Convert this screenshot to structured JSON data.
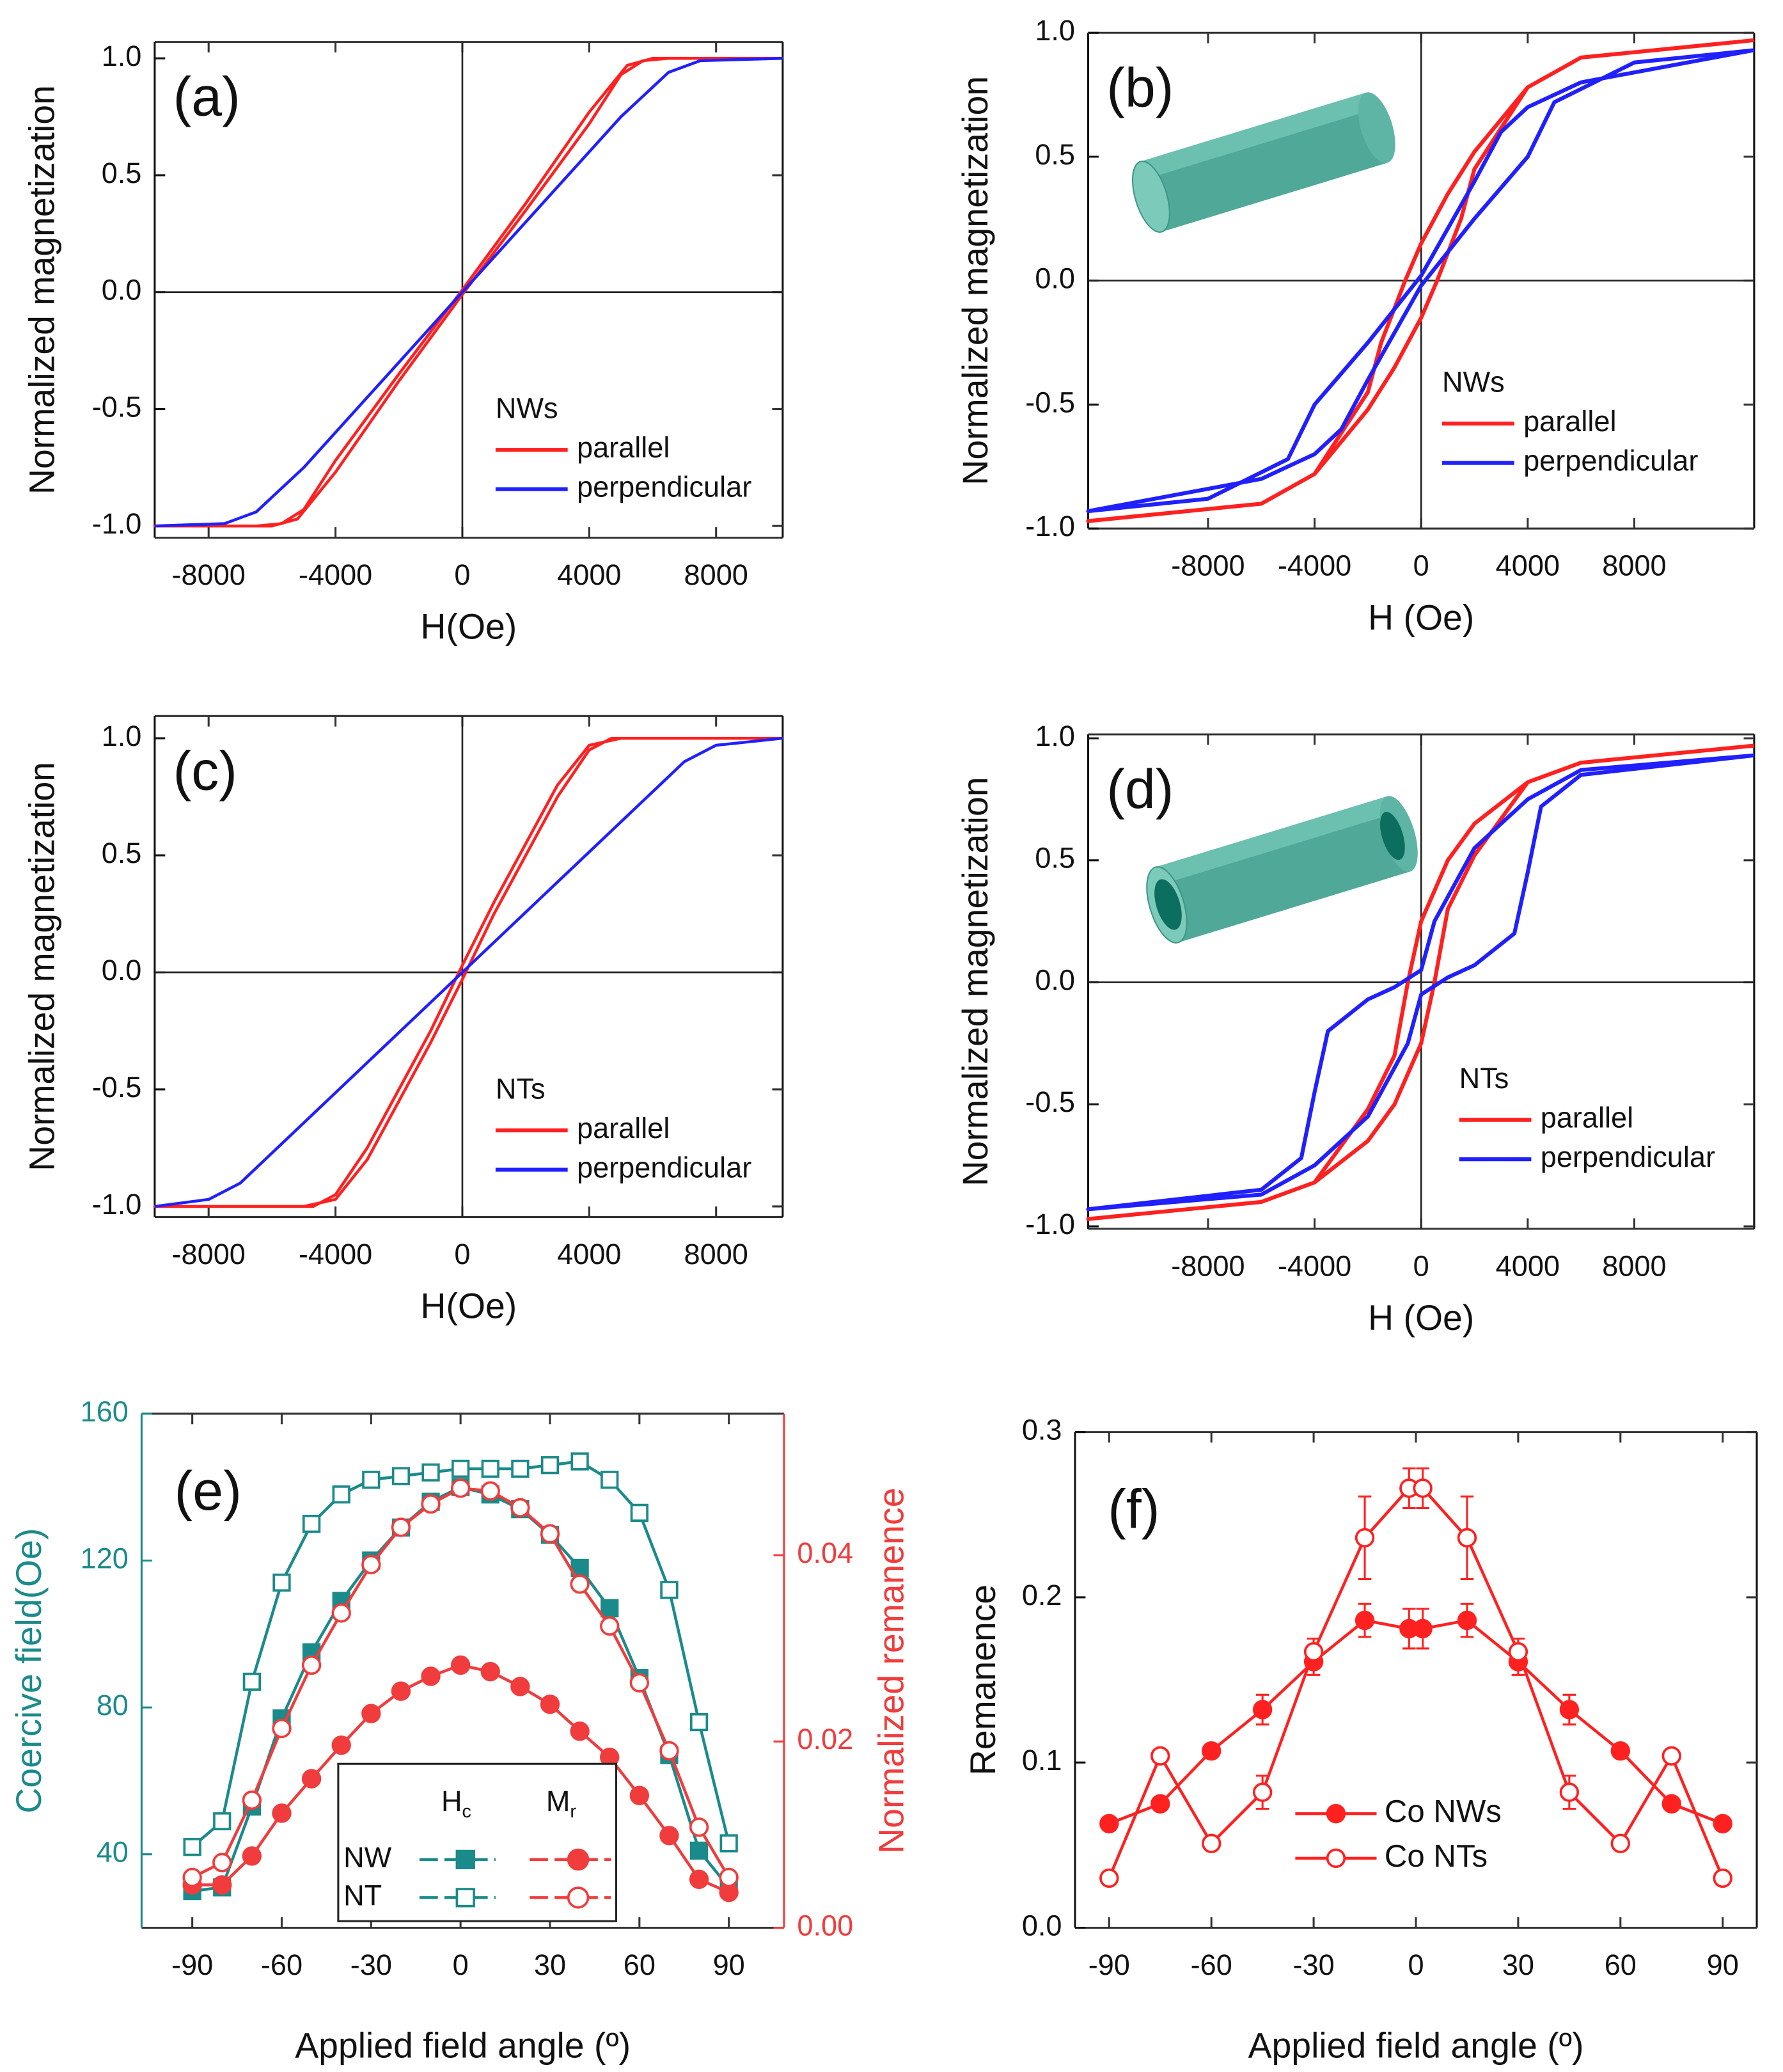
{
  "chart_data": [
    {
      "type": "line",
      "title": "(a)",
      "xlabel": "H(Oe)",
      "ylabel": "Normalized magnetization",
      "legend_title": "NWs",
      "xlim": [
        -9700,
        10100
      ],
      "ylim": [
        -1.05,
        1.07
      ],
      "xticks": [
        -8000,
        -4000,
        0,
        4000,
        8000
      ],
      "yticks": [
        {
          "value": -1,
          "label": "-1.0"
        },
        -0.5,
        {
          "value": 0,
          "label": "0.0"
        },
        0.5,
        {
          "value": 1,
          "label": "1.0"
        }
      ],
      "zero_lines": true,
      "series": [
        {
          "name": "parallel",
          "color": "#ff2020",
          "x": [
            10100,
            6000,
            5200,
            4000,
            2000,
            0,
            -2000,
            -4000,
            -5000,
            -5700,
            -6500,
            -9700,
            -6000,
            -5200,
            -4000,
            -2000,
            0,
            2000,
            4000,
            5000,
            5700,
            6500,
            10100
          ],
          "values": [
            1,
            1,
            0.97,
            0.77,
            0.38,
            0.01,
            -0.35,
            -0.72,
            -0.93,
            -0.99,
            -1,
            -1,
            -1,
            -0.97,
            -0.77,
            -0.38,
            -0.01,
            0.35,
            0.72,
            0.93,
            0.99,
            1,
            1
          ]
        },
        {
          "name": "perpendicular",
          "color": "#2020ff",
          "x": [
            -9700,
            -7500,
            -6500,
            -5000,
            0,
            5000,
            6500,
            7500,
            10100
          ],
          "values": [
            -1,
            -0.99,
            -0.94,
            -0.75,
            0,
            0.75,
            0.94,
            0.99,
            1
          ]
        }
      ]
    },
    {
      "type": "line",
      "title": "(b)",
      "xlabel": "H (Oe)",
      "ylabel": "Normalized magnetization",
      "legend_title": "NWs",
      "xlim": [
        -12500,
        12500
      ],
      "ylim": [
        -1,
        1
      ],
      "xticks": [
        -8000,
        -4000,
        0,
        4000,
        8000
      ],
      "yticks": [
        {
          "value": -1,
          "label": "-1.0"
        },
        -0.5,
        {
          "value": 0,
          "label": "0.0"
        },
        0.5,
        {
          "value": 1,
          "label": "1.0"
        }
      ],
      "zero_lines": true,
      "series": [
        {
          "name": "parallel",
          "color": "#ff2020",
          "x": [
            12500,
            6000,
            4000,
            2000,
            1000,
            0,
            -600,
            -1500,
            -2000,
            -4000,
            -6000,
            -12500,
            -6000,
            -4000,
            -2000,
            -1000,
            0,
            600,
            1500,
            2000,
            4000,
            6000,
            12500
          ],
          "values": [
            0.97,
            0.9,
            0.78,
            0.52,
            0.35,
            0.15,
            0,
            -0.25,
            -0.45,
            -0.78,
            -0.9,
            -0.97,
            -0.9,
            -0.78,
            -0.52,
            -0.35,
            -0.15,
            0,
            0.25,
            0.45,
            0.78,
            0.9,
            0.97
          ]
        },
        {
          "name": "perpendicular",
          "color": "#2020ff",
          "x": [
            12500,
            6000,
            4000,
            3000,
            2000,
            0,
            -2000,
            -4000,
            -5000,
            -8000,
            -12500,
            -6000,
            -4000,
            -3000,
            -2000,
            0,
            2000,
            4000,
            5000,
            8000,
            12500
          ],
          "values": [
            0.93,
            0.8,
            0.7,
            0.6,
            0.4,
            0.02,
            -0.25,
            -0.5,
            -0.72,
            -0.88,
            -0.93,
            -0.8,
            -0.7,
            -0.6,
            -0.4,
            -0.02,
            0.25,
            0.5,
            0.72,
            0.88,
            0.93
          ]
        }
      ]
    },
    {
      "type": "line",
      "title": "(c)",
      "xlabel": "H(Oe)",
      "ylabel": "Normalized magnetization",
      "legend_title": "NTs",
      "xlim": [
        -9700,
        10100
      ],
      "ylim": [
        -1.045,
        1.095
      ],
      "xticks": [
        -8000,
        -4000,
        0,
        4000,
        8000
      ],
      "yticks": [
        {
          "value": -1,
          "label": "-1.0"
        },
        -0.5,
        {
          "value": 0,
          "label": "0.0"
        },
        0.5,
        {
          "value": 1,
          "label": "1.0"
        }
      ],
      "zero_lines": true,
      "series": [
        {
          "name": "parallel",
          "color": "#ff2020",
          "x": [
            10100,
            5000,
            4000,
            3000,
            1000,
            0,
            -1000,
            -3000,
            -4000,
            -4700,
            -9700,
            -5000,
            -4000,
            -3000,
            -1000,
            0,
            1000,
            3000,
            4000,
            4700,
            10100
          ],
          "values": [
            1,
            1,
            0.97,
            0.8,
            0.3,
            0.03,
            -0.25,
            -0.75,
            -0.95,
            -1,
            -1,
            -1,
            -0.97,
            -0.8,
            -0.3,
            -0.03,
            0.25,
            0.75,
            0.95,
            1,
            1
          ]
        },
        {
          "name": "perpendicular",
          "color": "#2020ff",
          "x": [
            -9700,
            -8000,
            -7000,
            0,
            7000,
            8000,
            10100
          ],
          "values": [
            -1,
            -0.97,
            -0.9,
            0,
            0.9,
            0.97,
            1
          ]
        }
      ]
    },
    {
      "type": "line",
      "title": "(d)",
      "xlabel": "H (Oe)",
      "ylabel": "Normalized magnetization",
      "legend_title": "NTs",
      "xlim": [
        -12500,
        12500
      ],
      "ylim": [
        -1.01,
        1.016
      ],
      "xticks": [
        -8000,
        -4000,
        0,
        4000,
        8000
      ],
      "yticks": [
        {
          "value": -1,
          "label": "-1.0"
        },
        -0.5,
        {
          "value": 0,
          "label": "0.0"
        },
        0.5,
        {
          "value": 1,
          "label": "1.0"
        }
      ],
      "zero_lines": true,
      "series": [
        {
          "name": "parallel",
          "color": "#ff2020",
          "x": [
            12500,
            6000,
            4000,
            2000,
            1000,
            0,
            -500,
            -1000,
            -2000,
            -4000,
            -6000,
            -12500,
            -6000,
            -4000,
            -2000,
            -1000,
            0,
            500,
            1000,
            2000,
            4000,
            6000,
            12500
          ],
          "values": [
            0.97,
            0.9,
            0.82,
            0.65,
            0.5,
            0.25,
            0,
            -0.3,
            -0.52,
            -0.82,
            -0.9,
            -0.97,
            -0.9,
            -0.82,
            -0.65,
            -0.5,
            -0.25,
            0,
            0.3,
            0.52,
            0.82,
            0.9,
            0.97
          ]
        },
        {
          "name": "perpendicular",
          "color": "#2020ff",
          "x": [
            12500,
            6000,
            4000,
            2000,
            500,
            0,
            -1000,
            -2000,
            -3500,
            -4000,
            -4500,
            -6000,
            -12500,
            -6000,
            -4000,
            -2000,
            -500,
            0,
            1000,
            2000,
            3500,
            4000,
            4500,
            6000,
            12500
          ],
          "values": [
            0.93,
            0.87,
            0.75,
            0.55,
            0.25,
            0.05,
            -0.02,
            -0.07,
            -0.2,
            -0.45,
            -0.72,
            -0.85,
            -0.93,
            -0.87,
            -0.75,
            -0.55,
            -0.25,
            -0.05,
            0.02,
            0.07,
            0.2,
            0.45,
            0.72,
            0.85,
            0.93
          ]
        }
      ]
    },
    {
      "type": "line",
      "title": "(e)",
      "xlabel": "Applied field angle (º)",
      "ylabel": "Coercive field(Oe)",
      "y2label": "Normalized remanence",
      "legend_rows": [
        "NW",
        "NT"
      ],
      "legend_columns": [
        {
          "text": "H",
          "sub": "c"
        },
        {
          "text": "M",
          "sub": "r"
        }
      ],
      "xlim": [
        -107,
        108.5
      ],
      "ylim": [
        20,
        160
      ],
      "y2lim": [
        0,
        0.0552
      ],
      "xticks": [
        -90,
        -60,
        -30,
        0,
        30,
        60,
        90
      ],
      "yticks": [
        40,
        80,
        120,
        160
      ],
      "y2ticks": [
        {
          "value": 0,
          "label": "0.00"
        },
        0.02,
        0.04
      ],
      "x": [
        -90,
        -80,
        -70,
        -60,
        -50,
        -40,
        -30,
        -20,
        -10,
        0,
        10,
        20,
        30,
        40,
        50,
        60,
        70,
        80,
        90
      ],
      "series": [
        {
          "color": "#1b8a8a",
          "marker": "square",
          "filled": true,
          "values": [
            30,
            31,
            53,
            77,
            95,
            109,
            120,
            129,
            136,
            140,
            138,
            134,
            127,
            118,
            107,
            88,
            67,
            41,
            31
          ]
        },
        {
          "color": "#1b8a8a",
          "marker": "square",
          "filled": false,
          "values": [
            42,
            49,
            87,
            114,
            130,
            138,
            142,
            143,
            144,
            145,
            145,
            145,
            146,
            147,
            142,
            133,
            112,
            76,
            43
          ]
        },
        {
          "color": "#f03c3c",
          "marker": "circle",
          "filled": true,
          "axis": "y2",
          "values": [
            0.0046,
            0.0046,
            0.0077,
            0.0123,
            0.016,
            0.0196,
            0.023,
            0.0254,
            0.027,
            0.0282,
            0.0275,
            0.0259,
            0.024,
            0.0211,
            0.0183,
            0.0142,
            0.0099,
            0.0052,
            0.0038
          ]
        },
        {
          "color": "#f03c3c",
          "marker": "circle",
          "filled": false,
          "axis": "y2",
          "values": [
            0.0054,
            0.007,
            0.0137,
            0.0214,
            0.0282,
            0.0338,
            0.039,
            0.043,
            0.0455,
            0.0472,
            0.0469,
            0.0451,
            0.0423,
            0.0369,
            0.0324,
            0.0263,
            0.019,
            0.0108,
            0.0054
          ]
        }
      ]
    },
    {
      "type": "line",
      "title": "(f)",
      "xlabel": "Applied field angle (º)",
      "ylabel": "Remanence",
      "xlim": [
        -100,
        100
      ],
      "ylim": [
        0,
        0.3
      ],
      "xticks": [
        -90,
        -60,
        -30,
        0,
        30,
        60,
        90
      ],
      "yticks": [
        {
          "value": 0,
          "label": "0.0"
        },
        0.1,
        0.2,
        0.3
      ],
      "x": [
        -90,
        -75,
        -60,
        -45,
        -30,
        -15,
        -2,
        2,
        15,
        30,
        45,
        60,
        75,
        90
      ],
      "series": [
        {
          "name": "Co NWs",
          "color": "#ff2020",
          "marker": "circle",
          "filled": true,
          "values": [
            0.063,
            0.075,
            0.107,
            0.132,
            0.161,
            0.186,
            0.181,
            0.181,
            0.186,
            0.161,
            0.132,
            0.107,
            0.075,
            0.063
          ],
          "errors": [
            0.002,
            0.003,
            0.003,
            0.009,
            0.008,
            0.01,
            0.012,
            0.012,
            0.01,
            0.008,
            0.009,
            0.003,
            0.003,
            0.002
          ]
        },
        {
          "name": "Co NTs",
          "color": "#ff2020",
          "marker": "circle",
          "filled": false,
          "values": [
            0.03,
            0.104,
            0.051,
            0.082,
            0.167,
            0.236,
            0.266,
            0.266,
            0.236,
            0.167,
            0.082,
            0.051,
            0.104,
            0.03
          ],
          "errors": [
            0.002,
            0.003,
            0.004,
            0.01,
            0.008,
            0.025,
            0.012,
            0.012,
            0.025,
            0.008,
            0.01,
            0.004,
            0.003,
            0.002
          ]
        }
      ]
    }
  ]
}
